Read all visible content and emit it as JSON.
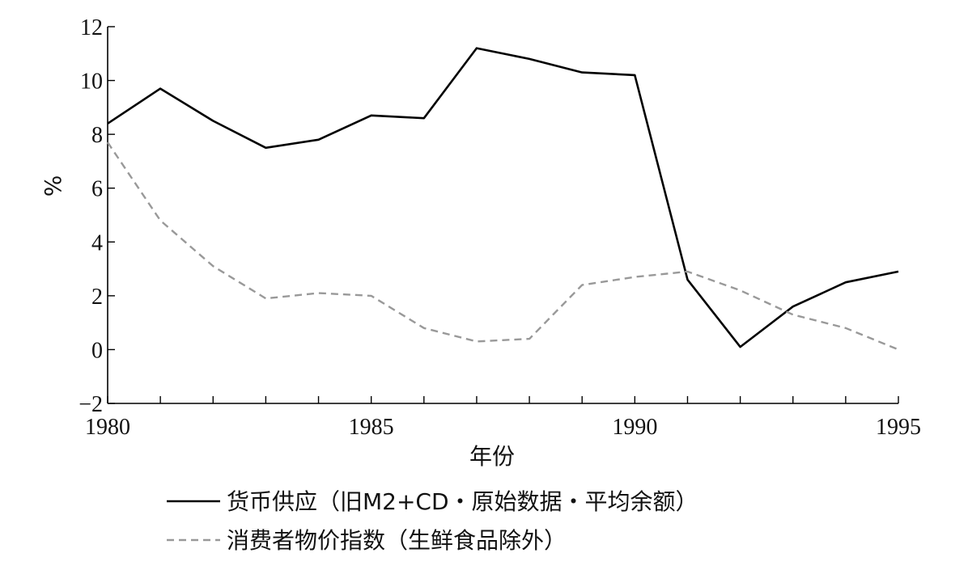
{
  "chart_data": {
    "type": "line",
    "xlabel": "年份",
    "ylabel": "%",
    "xlim": [
      1980,
      1995
    ],
    "ylim": [
      -2,
      12
    ],
    "x_ticks": [
      "1980",
      "1985",
      "1990",
      "1995"
    ],
    "y_ticks": [
      "12",
      "10",
      "8",
      "6",
      "4",
      "2",
      "0",
      "−2"
    ],
    "x_tick_values": [
      1980,
      1985,
      1990,
      1995
    ],
    "y_tick_values": [
      12,
      10,
      8,
      6,
      4,
      2,
      0,
      -2
    ],
    "grid": false,
    "legend_position": "bottom",
    "x": [
      1980,
      1981,
      1982,
      1983,
      1984,
      1985,
      1986,
      1987,
      1988,
      1989,
      1990,
      1991,
      1992,
      1993,
      1994,
      1995
    ],
    "series": [
      {
        "name": "货币供应（旧M2+CD・原始数据・平均余额）",
        "style": "solid",
        "color": "#000000",
        "values": [
          8.4,
          9.7,
          8.5,
          7.5,
          7.8,
          8.7,
          8.6,
          11.2,
          10.8,
          10.3,
          10.2,
          2.6,
          0.1,
          1.6,
          2.5,
          2.9
        ]
      },
      {
        "name": "消费者物价指数（生鲜食品除外）",
        "style": "dashed",
        "color": "#999999",
        "values": [
          7.7,
          4.8,
          3.1,
          1.9,
          2.1,
          2.0,
          0.8,
          0.3,
          0.4,
          2.4,
          2.7,
          2.9,
          2.2,
          1.3,
          0.8,
          0.0
        ]
      }
    ]
  }
}
